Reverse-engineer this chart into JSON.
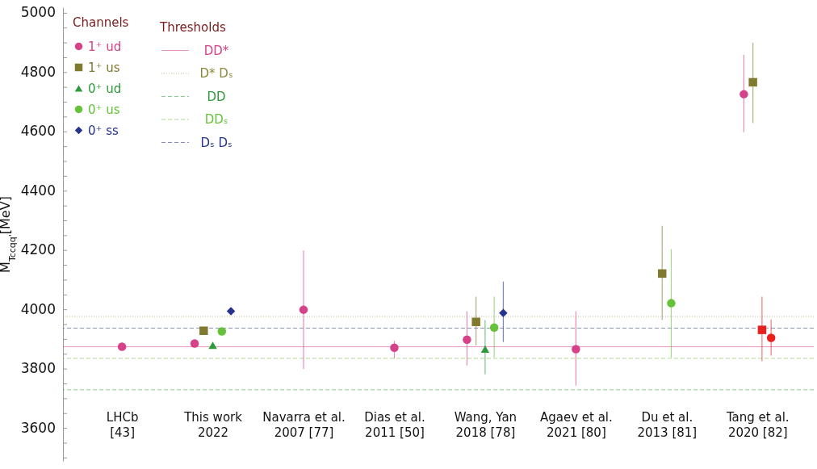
{
  "chart_data": {
    "type": "scatter",
    "ylabel": "M$_{Tccqq'}$[MeV]",
    "legend_title": "Channels",
    "annotations": [
      "Thresholds"
    ],
    "categories": [
      "LHCb\n[43]",
      "This work\n2022",
      "Navarra et al.\n2007 [77]",
      "Dias et al.\n2011 [50]",
      "Wang, Yan\n2018 [78]",
      "Agaev et al.\n2021 [80]",
      "Du et al.\n2013 [81]",
      "Tang et al.\n2020 [82]"
    ],
    "series": [
      {
        "name": "1⁺ ud",
        "color": "#d6428a",
        "marker": "circle",
        "values": [
          3875,
          3886,
          4000,
          3872,
          3899,
          3867,
          null,
          4727
        ],
        "errors": [
          null,
          null,
          [
            3800,
            4200
          ],
          [
            3835,
            3895
          ],
          [
            3812,
            3995
          ],
          [
            3744,
            3995
          ],
          null,
          [
            4599,
            4860
          ]
        ]
      },
      {
        "name": "1⁺ us",
        "color": "#7f7a2e",
        "marker": "square",
        "values": [
          null,
          3929,
          null,
          null,
          3959,
          null,
          4122,
          4767
        ],
        "errors": [
          null,
          null,
          null,
          null,
          [
            3880,
            4044
          ],
          null,
          [
            3965,
            4283
          ],
          [
            4629,
            4900
          ]
        ]
      },
      {
        "name": "0⁺ ud",
        "color": "#2e9a3a",
        "marker": "triangle",
        "values": [
          null,
          3880,
          null,
          null,
          3867,
          null,
          null,
          null
        ],
        "errors": [
          null,
          null,
          null,
          null,
          [
            3782,
            3965
          ],
          null,
          null,
          null
        ]
      },
      {
        "name": "0⁺ us",
        "color": "#66c23a",
        "marker": "circle",
        "values": [
          null,
          3927,
          null,
          null,
          3940,
          null,
          4022,
          null
        ],
        "errors": [
          null,
          null,
          null,
          null,
          [
            3839,
            4044
          ],
          null,
          [
            3839,
            4204
          ],
          null
        ]
      },
      {
        "name": "0⁺ ss",
        "color": "#26338c",
        "marker": "diamond",
        "values": [
          null,
          3995,
          null,
          null,
          3989,
          null,
          null,
          null
        ],
        "errors": [
          null,
          null,
          null,
          null,
          [
            3891,
            4095
          ],
          null,
          null,
          null
        ]
      },
      {
        "color": "#e8201e",
        "marker": "square",
        "values": [
          null,
          null,
          null,
          null,
          null,
          null,
          null,
          3932
        ],
        "errors": [
          null,
          null,
          null,
          null,
          null,
          null,
          null,
          [
            3826,
            4044
          ]
        ]
      },
      {
        "color": "#e8201e",
        "marker": "circle",
        "values": [
          null,
          null,
          null,
          null,
          null,
          null,
          null,
          3905
        ],
        "errors": [
          null,
          null,
          null,
          null,
          null,
          null,
          null,
          [
            3845,
            3967
          ]
        ]
      }
    ],
    "ref_lines": [
      {
        "axis": "y",
        "value": 3875,
        "label": "DD*",
        "color": "#d6428a",
        "line_style": "solid"
      },
      {
        "axis": "y",
        "value": 3977,
        "label": "D* Dₛ",
        "color": "#8a8a3a",
        "line_style": "dotted"
      },
      {
        "axis": "y",
        "value": 3730,
        "label": "DD",
        "color": "#2e9a3a",
        "line_style": "dashed"
      },
      {
        "axis": "y",
        "value": 3836,
        "label": "DDₛ",
        "color": "#66c23a",
        "line_style": "dashed"
      },
      {
        "axis": "y",
        "value": 3938,
        "label": "Dₛ Dₛ",
        "color": "#26338c",
        "line_style": "dashed"
      }
    ],
    "ylim": [
      3490,
      5020
    ],
    "yticks": [
      {
        "value": 3500,
        "label": null
      },
      {
        "value": 3550,
        "label": null
      },
      3600,
      {
        "value": 3650,
        "label": null
      },
      {
        "value": 3700,
        "label": null
      },
      {
        "value": 3750,
        "label": null
      },
      3800,
      {
        "value": 3850,
        "label": null
      },
      {
        "value": 3900,
        "label": null
      },
      {
        "value": 3950,
        "label": null
      },
      4000,
      {
        "value": 4050,
        "label": null
      },
      {
        "value": 4100,
        "label": null
      },
      {
        "value": 4150,
        "label": null
      },
      4200,
      {
        "value": 4250,
        "label": null
      },
      {
        "value": 4300,
        "label": null
      },
      {
        "value": 4350,
        "label": null
      },
      4400,
      {
        "value": 4450,
        "label": null
      },
      {
        "value": 4500,
        "label": null
      },
      {
        "value": 4550,
        "label": null
      },
      4600,
      {
        "value": 4650,
        "label": null
      },
      {
        "value": 4700,
        "label": null
      },
      {
        "value": 4750,
        "label": null
      },
      4800,
      {
        "value": 4850,
        "label": null
      },
      {
        "value": 4900,
        "label": null
      },
      {
        "value": 4950,
        "label": null
      },
      5000
    ],
    "legend": "top left",
    "grid": false
  }
}
